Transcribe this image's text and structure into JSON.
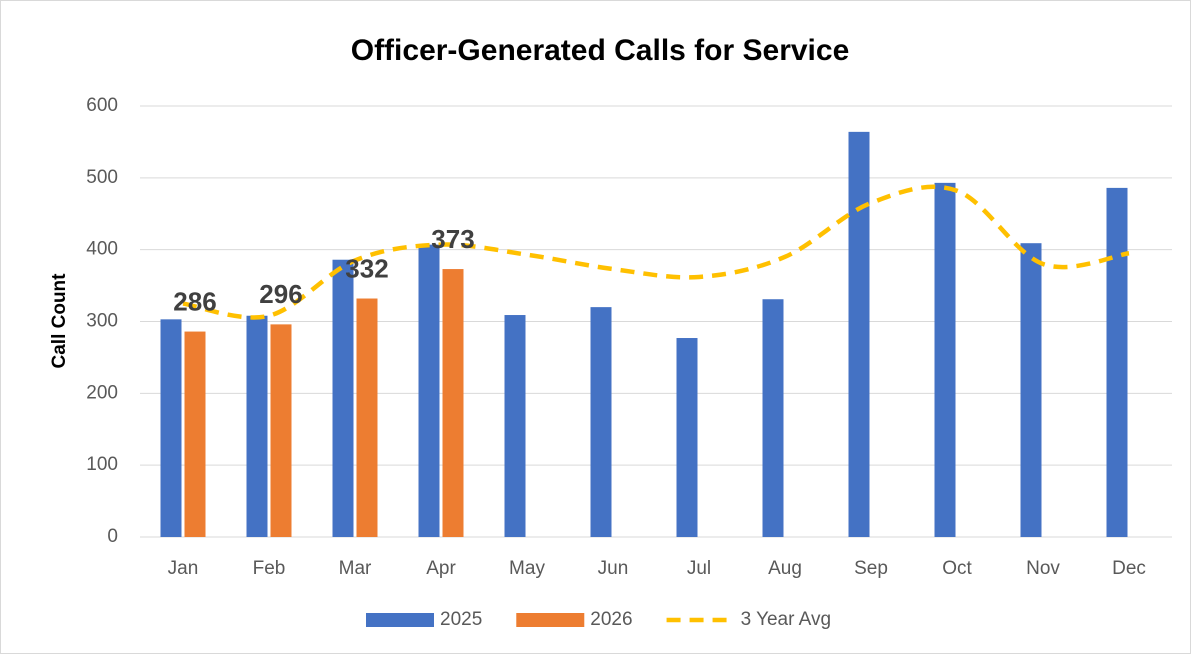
{
  "chart_data": {
    "type": "bar",
    "title": "Officer-Generated Calls for Service",
    "y_label": "Call Count",
    "categories": [
      "Jan",
      "Feb",
      "Mar",
      "Apr",
      "May",
      "Jun",
      "Jul",
      "Aug",
      "Sep",
      "Oct",
      "Nov",
      "Dec"
    ],
    "series": [
      {
        "name": "2025",
        "type": "bar",
        "color": "#4472c4",
        "values": [
          303,
          308,
          386,
          407,
          309,
          320,
          277,
          331,
          564,
          493,
          409,
          486
        ]
      },
      {
        "name": "2026",
        "type": "bar",
        "color": "#ed7d31",
        "values": [
          286,
          296,
          332,
          373,
          null,
          null,
          null,
          null,
          null,
          null,
          null,
          null
        ],
        "data_labels": true
      },
      {
        "name": "3 Year Avg",
        "type": "line",
        "color": "#ffc000",
        "dashed": true,
        "values": [
          325,
          308,
          385,
          407,
          393,
          373,
          362,
          390,
          465,
          482,
          380,
          395
        ]
      }
    ],
    "ylim": [
      0,
      600
    ],
    "yticks": [
      0,
      100,
      200,
      300,
      400,
      500,
      600
    ],
    "grid": true,
    "legend": "bottom"
  }
}
